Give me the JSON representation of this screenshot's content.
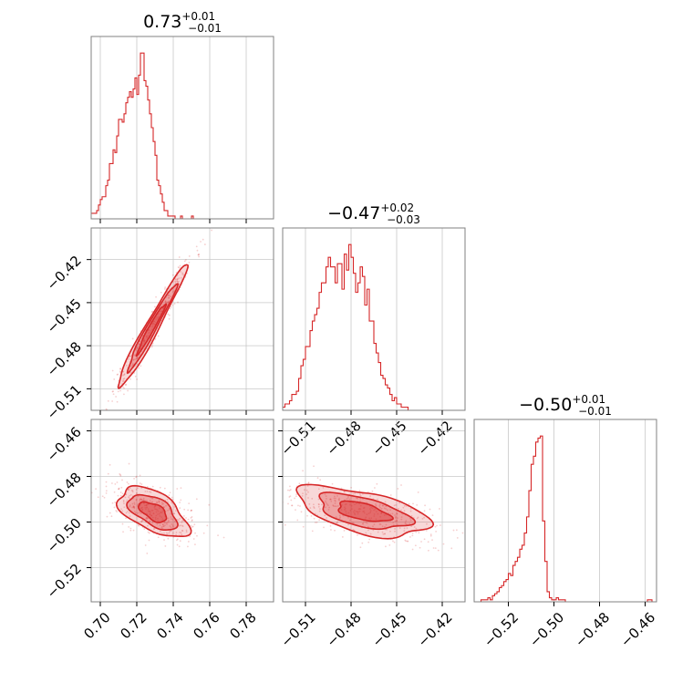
{
  "figure": {
    "accent_color": "#d62728",
    "grid_color": "#c8c8c8",
    "frame_color": "#808080"
  },
  "chart_data": [
    {
      "type": "histogram",
      "panel": "p00",
      "title": {
        "value": "0.73",
        "plus": "+0.01",
        "minus": "−0.01"
      },
      "xlim": [
        0.695,
        0.795
      ],
      "xticks": [
        0.7,
        0.72,
        0.74,
        0.76,
        0.78
      ],
      "bin_start": 0.695,
      "bin_width": 0.001,
      "counts": [
        2,
        2,
        2,
        3,
        5,
        7,
        8,
        8,
        12,
        14,
        20,
        20,
        25,
        24,
        30,
        36,
        36,
        35,
        38,
        42,
        44,
        46,
        44,
        47,
        51,
        45,
        52,
        60,
        60,
        50,
        48,
        43,
        38,
        33,
        28,
        23,
        14,
        12,
        9,
        6,
        3,
        3,
        1,
        1,
        1,
        1,
        0,
        0,
        0,
        1,
        0,
        0,
        0,
        0,
        0,
        1,
        0,
        0,
        0,
        0,
        0,
        0,
        0,
        0,
        0,
        0,
        0,
        0,
        0,
        0,
        0,
        0,
        0,
        0,
        0,
        0,
        0,
        0,
        0,
        0,
        0,
        0,
        0,
        0,
        0,
        0,
        0,
        0,
        0,
        0,
        0,
        0,
        0,
        0,
        0,
        0,
        0,
        0,
        0,
        0
      ]
    },
    {
      "type": "histogram",
      "panel": "p11",
      "title": {
        "value": "−0.47",
        "plus": "+0.02",
        "minus": "−0.03"
      },
      "xlim": [
        -0.525,
        -0.405
      ],
      "xticks": [
        -0.51,
        -0.48,
        -0.45,
        -0.42
      ],
      "xtick_labels": [
        "−0.51",
        "−0.48",
        "−0.45",
        "−0.42"
      ],
      "bin_start": -0.525,
      "bin_width": 0.0015,
      "counts": [
        1,
        2,
        2,
        3,
        5,
        5,
        6,
        10,
        14,
        16,
        20,
        20,
        25,
        28,
        30,
        32,
        37,
        40,
        40,
        45,
        48,
        45,
        45,
        40,
        46,
        46,
        38,
        49,
        44,
        52,
        48,
        43,
        37,
        40,
        45,
        42,
        33,
        38,
        28,
        28,
        21,
        18,
        15,
        11,
        10,
        8,
        7,
        5,
        3,
        4,
        2,
        2,
        1,
        1,
        1,
        0,
        0,
        0,
        0,
        0,
        0,
        0,
        0,
        0,
        0,
        0,
        0,
        0,
        0,
        0,
        0,
        0,
        0,
        0,
        0,
        0,
        0,
        0,
        0,
        0
      ]
    },
    {
      "type": "histogram",
      "panel": "p22",
      "title": {
        "value": "−0.50",
        "plus": "+0.01",
        "minus": "−0.01"
      },
      "xlim": [
        -0.535,
        -0.455
      ],
      "xticks": [
        -0.52,
        -0.5,
        -0.48,
        -0.46
      ],
      "xtick_labels": [
        "−0.52",
        "−0.50",
        "−0.48",
        "−0.46"
      ],
      "bin_start": -0.535,
      "bin_width": 0.001,
      "counts": [
        0,
        0,
        0,
        1,
        1,
        1,
        2,
        1,
        3,
        4,
        5,
        7,
        8,
        10,
        11,
        14,
        13,
        18,
        20,
        22,
        26,
        28,
        34,
        42,
        55,
        68,
        72,
        79,
        81,
        82,
        40,
        20,
        5,
        2,
        1,
        1,
        2,
        1,
        1,
        1,
        0,
        0,
        0,
        0,
        0,
        0,
        0,
        0,
        0,
        0,
        0,
        0,
        0,
        0,
        0,
        0,
        0,
        0,
        0,
        0,
        0,
        0,
        0,
        0,
        0,
        0,
        0,
        0,
        0,
        0,
        0,
        0,
        0,
        0,
        0,
        0,
        1,
        1,
        0,
        0
      ]
    },
    {
      "type": "contour",
      "panel": "p10",
      "xlim": [
        0.695,
        0.795
      ],
      "ylim": [
        -0.525,
        -0.398
      ],
      "xticks": [
        0.7,
        0.72,
        0.74,
        0.76,
        0.78
      ],
      "yticks": [
        -0.51,
        -0.48,
        -0.45,
        -0.42
      ],
      "ytick_labels": [
        "−0.51",
        "−0.48",
        "−0.45",
        "−0.42"
      ],
      "mean": [
        0.728,
        -0.468
      ],
      "sd": [
        0.0095,
        0.0215
      ],
      "rho": 0.975
    },
    {
      "type": "contour",
      "panel": "p20",
      "xlim": [
        0.695,
        0.795
      ],
      "ylim": [
        -0.535,
        -0.455
      ],
      "xticks": [
        0.7,
        0.72,
        0.74,
        0.76,
        0.78
      ],
      "xtick_labels": [
        "0.70",
        "0.72",
        "0.74",
        "0.76",
        "0.78"
      ],
      "yticks": [
        -0.52,
        -0.5,
        -0.48,
        -0.46
      ],
      "ytick_labels": [
        "−0.52",
        "−0.50",
        "−0.48",
        "−0.46"
      ],
      "mean": [
        0.729,
        -0.4955
      ],
      "sd": [
        0.0095,
        0.0055
      ],
      "rho": -0.55
    },
    {
      "type": "contour",
      "panel": "p21",
      "xlim": [
        -0.525,
        -0.405
      ],
      "ylim": [
        -0.535,
        -0.455
      ],
      "xticks": [
        -0.51,
        -0.48,
        -0.45,
        -0.42
      ],
      "xtick_labels": [
        "−0.51",
        "−0.48",
        "−0.45",
        "−0.42"
      ],
      "yticks": [
        -0.52,
        -0.5,
        -0.48,
        -0.46
      ],
      "mean": [
        -0.472,
        -0.4955
      ],
      "sd": [
        0.0215,
        0.0055
      ],
      "rho": -0.55
    }
  ]
}
